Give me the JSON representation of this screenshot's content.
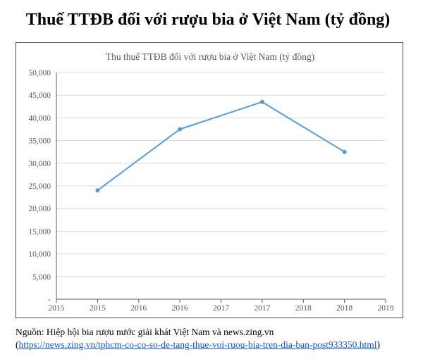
{
  "page": {
    "title": "Thuế TTĐB đối với rượu bia ở Việt Nam (tỷ đồng)",
    "source_text": "Nguồn: Hiệp hội bia rượu nước giải khát Việt Nam và news.zing.vn",
    "source_open_paren": "(",
    "source_link": "https://news.zing.vn/tphcm-co-co-so-de-tang-thue-voi-ruou-bia-tren-dia-ban-post933350.html",
    "source_close_paren": ")"
  },
  "colors": {
    "series_line": "#5b9bd5",
    "gridline": "#d9d9d9",
    "axis_line": "#595959",
    "axis_text": "#595959",
    "link": "#1155cc"
  },
  "chart_data": {
    "type": "line",
    "title": "Thu thuế TTĐB đối với rượu bia ở Việt Nam (tỷ đồng)",
    "xlabel": "",
    "ylabel": "",
    "x": [
      2015,
      2016,
      2017,
      2018
    ],
    "series": [
      {
        "values": [
          24000,
          37500,
          43500,
          32500
        ]
      }
    ],
    "xlim": [
      2014.5,
      2018.5
    ],
    "x_tick_values": [
      2014.5,
      2015,
      2015.5,
      2016,
      2016.5,
      2017,
      2017.5,
      2018,
      2018.5
    ],
    "x_tick_labels": [
      "2015",
      "2015",
      "2016",
      "2016",
      "2017",
      "2017",
      "2018",
      "2018",
      "2019"
    ],
    "ylim": [
      0,
      50000
    ],
    "y_ticks": [
      0,
      5000,
      10000,
      15000,
      20000,
      25000,
      30000,
      35000,
      40000,
      45000,
      50000
    ],
    "y_tick_labels": [
      "-",
      "5,000",
      "10,000",
      "15,000",
      "20,000",
      "25,000",
      "30,000",
      "35,000",
      "40,000",
      "45,000",
      "50,000"
    ],
    "grid": true,
    "legend": "none"
  }
}
